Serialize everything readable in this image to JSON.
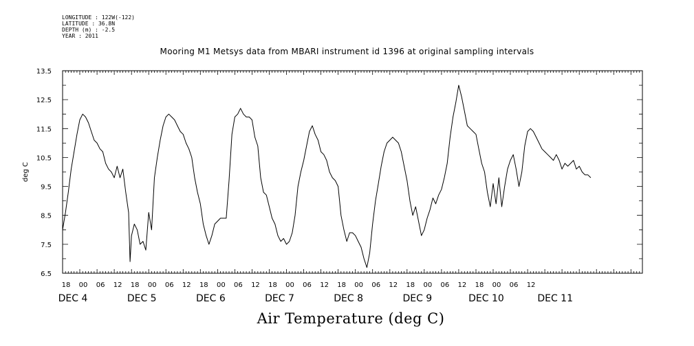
{
  "header": {
    "longitude": "LONGITUDE : 122W(-122)",
    "latitude": "LATITUDE : 36.8N",
    "depth": "DEPTH (m) : -2.5",
    "year": "YEAR : 2011"
  },
  "chart_data": {
    "type": "line",
    "title": "Mooring M1 Metsys data from MBARI instrument id 1396 at original sampling intervals",
    "xlabel": "Air Temperature (deg C)",
    "ylabel": "deg C",
    "ylim": [
      6.5,
      13.5
    ],
    "yticks": [
      "6.5",
      "7.5",
      "8.5",
      "9.5",
      "10.5",
      "11.5",
      "12.5",
      "13.5"
    ],
    "x_unit": "hours since DEC 3 18:00",
    "xlim": [
      0,
      202
    ],
    "hour_ticks": [
      "18",
      "00",
      "06",
      "12",
      "18",
      "00",
      "06",
      "12",
      "18",
      "00",
      "06",
      "12",
      "18",
      "00",
      "06",
      "12",
      "18",
      "00",
      "06",
      "12",
      "18",
      "00",
      "06",
      "12",
      "18",
      "00",
      "06",
      "12"
    ],
    "day_labels": [
      "DEC  4",
      "DEC  5",
      "DEC  6",
      "DEC  7",
      "DEC  8",
      "DEC  9",
      "DEC 10",
      "DEC 11"
    ],
    "grid": false,
    "series": [
      {
        "values": [
          [
            0,
            8.0
          ],
          [
            1,
            8.6
          ],
          [
            2,
            9.3
          ],
          [
            3,
            10.1
          ],
          [
            4,
            10.7
          ],
          [
            5,
            11.3
          ],
          [
            6,
            11.8
          ],
          [
            7,
            12.0
          ],
          [
            8,
            11.9
          ],
          [
            9,
            11.7
          ],
          [
            10,
            11.4
          ],
          [
            11,
            11.1
          ],
          [
            12,
            11.0
          ],
          [
            13,
            10.8
          ],
          [
            14,
            10.7
          ],
          [
            15,
            10.3
          ],
          [
            16,
            10.1
          ],
          [
            17,
            10.0
          ],
          [
            18,
            9.8
          ],
          [
            19,
            10.2
          ],
          [
            20,
            9.8
          ],
          [
            21,
            10.1
          ],
          [
            22,
            9.3
          ],
          [
            23,
            8.6
          ],
          [
            23.5,
            6.9
          ],
          [
            24,
            7.8
          ],
          [
            25,
            8.2
          ],
          [
            26,
            8.0
          ],
          [
            27,
            7.5
          ],
          [
            28,
            7.6
          ],
          [
            29,
            7.3
          ],
          [
            30,
            8.6
          ],
          [
            31,
            8.0
          ],
          [
            32,
            9.8
          ],
          [
            33,
            10.5
          ],
          [
            34,
            11.1
          ],
          [
            35,
            11.6
          ],
          [
            36,
            11.9
          ],
          [
            37,
            12.0
          ],
          [
            38,
            11.9
          ],
          [
            39,
            11.8
          ],
          [
            40,
            11.6
          ],
          [
            41,
            11.4
          ],
          [
            42,
            11.3
          ],
          [
            43,
            11.0
          ],
          [
            44,
            10.8
          ],
          [
            45,
            10.5
          ],
          [
            46,
            9.8
          ],
          [
            47,
            9.3
          ],
          [
            48,
            8.9
          ],
          [
            49,
            8.2
          ],
          [
            50,
            7.8
          ],
          [
            51,
            7.5
          ],
          [
            52,
            7.8
          ],
          [
            53,
            8.2
          ],
          [
            54,
            8.3
          ],
          [
            55,
            8.4
          ],
          [
            56,
            8.4
          ],
          [
            57,
            8.4
          ],
          [
            58,
            9.7
          ],
          [
            59,
            11.3
          ],
          [
            60,
            11.9
          ],
          [
            61,
            12.0
          ],
          [
            62,
            12.2
          ],
          [
            63,
            12.0
          ],
          [
            64,
            11.9
          ],
          [
            65,
            11.9
          ],
          [
            66,
            11.8
          ],
          [
            67,
            11.2
          ],
          [
            68,
            10.9
          ],
          [
            69,
            9.8
          ],
          [
            70,
            9.3
          ],
          [
            71,
            9.2
          ],
          [
            72,
            8.8
          ],
          [
            73,
            8.4
          ],
          [
            74,
            8.2
          ],
          [
            75,
            7.8
          ],
          [
            76,
            7.6
          ],
          [
            77,
            7.7
          ],
          [
            78,
            7.5
          ],
          [
            79,
            7.6
          ],
          [
            80,
            7.9
          ],
          [
            81,
            8.5
          ],
          [
            82,
            9.5
          ],
          [
            83,
            10.0
          ],
          [
            84,
            10.4
          ],
          [
            85,
            10.9
          ],
          [
            86,
            11.4
          ],
          [
            87,
            11.6
          ],
          [
            88,
            11.3
          ],
          [
            89,
            11.1
          ],
          [
            90,
            10.7
          ],
          [
            91,
            10.6
          ],
          [
            92,
            10.4
          ],
          [
            93,
            10.0
          ],
          [
            94,
            9.8
          ],
          [
            95,
            9.7
          ],
          [
            96,
            9.5
          ],
          [
            97,
            8.5
          ],
          [
            98,
            8.0
          ],
          [
            99,
            7.6
          ],
          [
            100,
            7.9
          ],
          [
            101,
            7.9
          ],
          [
            102,
            7.8
          ],
          [
            103,
            7.6
          ],
          [
            104,
            7.4
          ],
          [
            105,
            7.0
          ],
          [
            106,
            6.7
          ],
          [
            107,
            7.2
          ],
          [
            108,
            8.2
          ],
          [
            109,
            9.0
          ],
          [
            110,
            9.6
          ],
          [
            111,
            10.2
          ],
          [
            112,
            10.7
          ],
          [
            113,
            11.0
          ],
          [
            114,
            11.1
          ],
          [
            115,
            11.2
          ],
          [
            116,
            11.1
          ],
          [
            117,
            11.0
          ],
          [
            118,
            10.7
          ],
          [
            119,
            10.2
          ],
          [
            120,
            9.7
          ],
          [
            121,
            9.0
          ],
          [
            122,
            8.5
          ],
          [
            123,
            8.8
          ],
          [
            124,
            8.3
          ],
          [
            125,
            7.8
          ],
          [
            126,
            8.0
          ],
          [
            127,
            8.4
          ],
          [
            128,
            8.7
          ],
          [
            129,
            9.1
          ],
          [
            130,
            8.9
          ],
          [
            131,
            9.2
          ],
          [
            132,
            9.4
          ],
          [
            133,
            9.8
          ],
          [
            134,
            10.3
          ],
          [
            135,
            11.2
          ],
          [
            136,
            11.9
          ],
          [
            137,
            12.4
          ],
          [
            138,
            13.0
          ],
          [
            139,
            12.6
          ],
          [
            140,
            12.1
          ],
          [
            141,
            11.6
          ],
          [
            142,
            11.5
          ],
          [
            143,
            11.4
          ],
          [
            144,
            11.3
          ],
          [
            145,
            10.8
          ],
          [
            146,
            10.3
          ],
          [
            147,
            10.0
          ],
          [
            148,
            9.3
          ],
          [
            149,
            8.8
          ],
          [
            150,
            9.6
          ],
          [
            151,
            8.9
          ],
          [
            152,
            9.8
          ],
          [
            153,
            8.8
          ],
          [
            154,
            9.5
          ],
          [
            155,
            10.1
          ],
          [
            156,
            10.4
          ],
          [
            157,
            10.6
          ],
          [
            158,
            10.1
          ],
          [
            159,
            9.5
          ],
          [
            160,
            10.0
          ],
          [
            161,
            10.9
          ],
          [
            162,
            11.4
          ],
          [
            163,
            11.5
          ],
          [
            164,
            11.4
          ],
          [
            165,
            11.2
          ],
          [
            166,
            11.0
          ],
          [
            167,
            10.8
          ],
          [
            168,
            10.7
          ],
          [
            169,
            10.6
          ],
          [
            170,
            10.5
          ],
          [
            171,
            10.4
          ],
          [
            172,
            10.6
          ],
          [
            173,
            10.4
          ],
          [
            174,
            10.1
          ],
          [
            175,
            10.3
          ],
          [
            176,
            10.2
          ],
          [
            177,
            10.3
          ],
          [
            178,
            10.4
          ],
          [
            179,
            10.1
          ],
          [
            180,
            10.2
          ],
          [
            181,
            10.0
          ],
          [
            182,
            9.9
          ],
          [
            183,
            9.9
          ],
          [
            184,
            9.8
          ]
        ]
      }
    ]
  }
}
